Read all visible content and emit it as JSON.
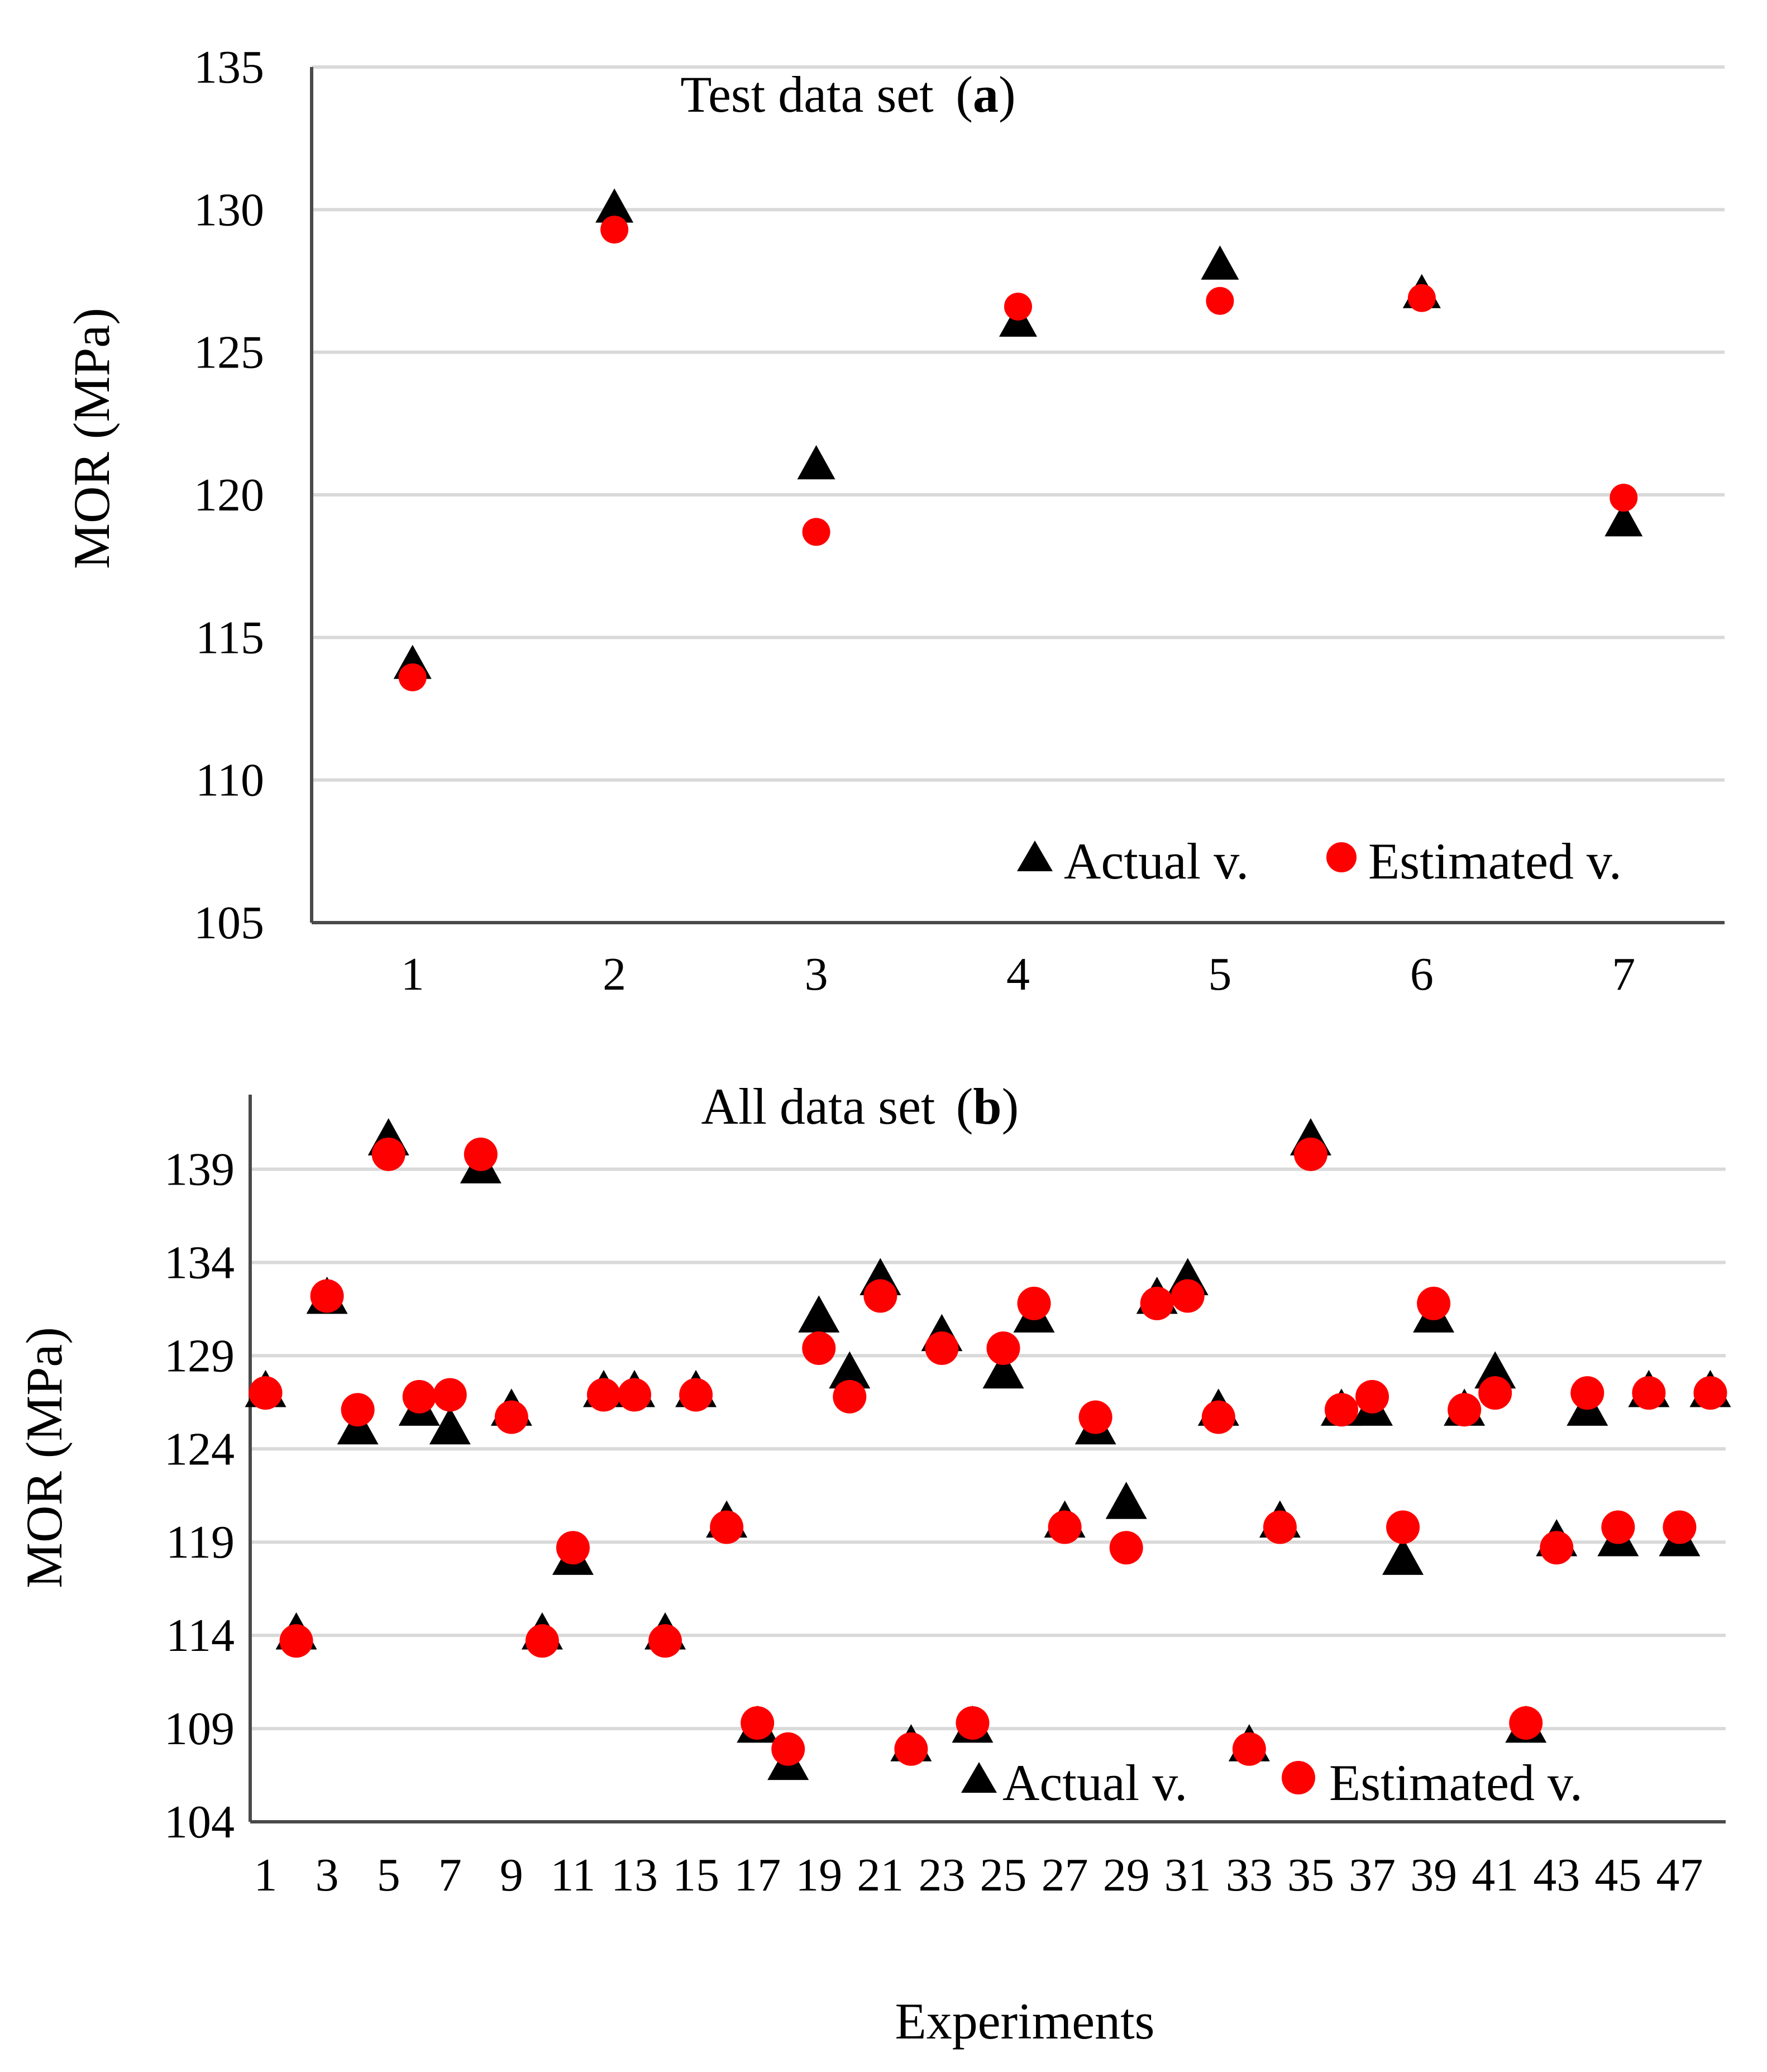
{
  "figure": {
    "shared_xlabel": "Experiments",
    "legend": {
      "actual_label": "Actual v.",
      "estimated_label": "Estimated v."
    },
    "colors": {
      "actual": "#000000",
      "estimated": "#ff0000",
      "grid": "#d9d9d9",
      "axis": "#4a4a4a"
    }
  },
  "chart_data": [
    {
      "type": "scatter",
      "panel": "a",
      "title": "Test data set",
      "panel_label": "a",
      "ylabel": "MOR (MPa)",
      "xlabel": "",
      "ylim": [
        105,
        135
      ],
      "yticks": [
        105,
        110,
        115,
        120,
        125,
        130,
        135
      ],
      "categories": [
        "1",
        "2",
        "3",
        "4",
        "5",
        "6",
        "7"
      ],
      "legend_position": "bottom-right",
      "series": [
        {
          "name": "Actual v.",
          "marker": "triangle",
          "color": "#000000",
          "values": [
            114,
            130,
            121,
            126,
            128,
            127,
            119
          ]
        },
        {
          "name": "Estimated v.",
          "marker": "circle",
          "color": "#ff0000",
          "values": [
            113.6,
            129.3,
            118.7,
            126.6,
            126.8,
            126.9,
            119.9
          ]
        }
      ]
    },
    {
      "type": "scatter",
      "panel": "b",
      "title": "All data set",
      "panel_label": "b",
      "ylabel": "MOR (MPa)",
      "xlabel": "Experiments",
      "ylim": [
        104,
        143
      ],
      "yticks": [
        104,
        109,
        114,
        119,
        124,
        129,
        134,
        139
      ],
      "x": [
        1,
        2,
        3,
        4,
        5,
        6,
        7,
        8,
        9,
        10,
        11,
        12,
        13,
        14,
        15,
        16,
        17,
        18,
        19,
        20,
        21,
        22,
        23,
        24,
        25,
        26,
        27,
        28,
        29,
        30,
        31,
        32,
        33,
        34,
        35,
        36,
        37,
        38,
        39,
        40,
        41,
        42,
        43,
        44,
        45,
        46,
        47,
        48
      ],
      "xtick_labels": [
        "1",
        "3",
        "5",
        "7",
        "9",
        "11",
        "13",
        "15",
        "17",
        "19",
        "21",
        "23",
        "25",
        "27",
        "29",
        "31",
        "33",
        "35",
        "37",
        "39",
        "41",
        "43",
        "45",
        "47"
      ],
      "legend_position": "bottom-right",
      "series": [
        {
          "name": "Actual v.",
          "marker": "triangle",
          "color": "#000000",
          "values": [
            127,
            114,
            132,
            125,
            140.5,
            126,
            125,
            139,
            126,
            114,
            118,
            127,
            127,
            114,
            127,
            120,
            109,
            107,
            131,
            128,
            133,
            108,
            130,
            109,
            128,
            131,
            120,
            125,
            121,
            132,
            133,
            126,
            108,
            120,
            140.5,
            126,
            126,
            118,
            131,
            126,
            128,
            109,
            119,
            126,
            119,
            127,
            119,
            127
          ]
        },
        {
          "name": "Estimated v.",
          "marker": "circle",
          "color": "#ff0000",
          "values": [
            127,
            113.7,
            132.2,
            126.1,
            139.8,
            126.8,
            126.9,
            139.8,
            125.7,
            113.7,
            118.7,
            126.9,
            126.9,
            113.7,
            126.9,
            119.8,
            109.3,
            107.9,
            129.4,
            126.8,
            132.2,
            107.9,
            129.4,
            109.3,
            129.4,
            131.8,
            119.8,
            125.7,
            118.7,
            131.8,
            132.2,
            125.7,
            107.9,
            119.8,
            139.8,
            126.1,
            126.8,
            119.8,
            131.8,
            126.1,
            127,
            109.3,
            118.7,
            127,
            119.8,
            127,
            119.8,
            127
          ]
        }
      ]
    }
  ]
}
